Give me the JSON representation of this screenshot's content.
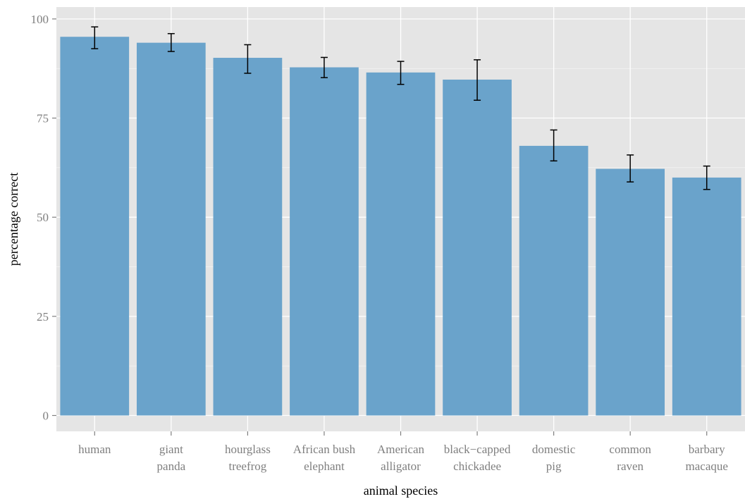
{
  "chart_data": {
    "type": "bar",
    "title": "",
    "xlabel": "animal species",
    "ylabel": "percentage correct",
    "ylim": [
      -4,
      103
    ],
    "yticks": [
      0,
      25,
      50,
      75,
      100
    ],
    "grid": true,
    "categories": [
      [
        "human"
      ],
      [
        "giant",
        "panda"
      ],
      [
        "hourglass",
        "treefrog"
      ],
      [
        "African bush",
        "elephant"
      ],
      [
        "American",
        "alligator"
      ],
      [
        "black−capped",
        "chickadee"
      ],
      [
        "domestic",
        "pig"
      ],
      [
        "common",
        "raven"
      ],
      [
        "barbary",
        "macaque"
      ]
    ],
    "series": [
      {
        "values": [
          95.5,
          94.0,
          90.2,
          87.8,
          86.5,
          84.7,
          68.0,
          62.2,
          60.0
        ],
        "error_low": [
          92.5,
          91.8,
          86.3,
          85.2,
          83.5,
          79.5,
          64.2,
          58.9,
          57.0
        ],
        "error_high": [
          98.0,
          96.3,
          93.5,
          90.3,
          89.3,
          89.7,
          72.0,
          65.7,
          62.9
        ]
      }
    ],
    "colors": {
      "bar": "#6aa3cb",
      "panel": "#e5e5e5",
      "grid": "#ffffff",
      "errorbar": "#000000"
    }
  }
}
